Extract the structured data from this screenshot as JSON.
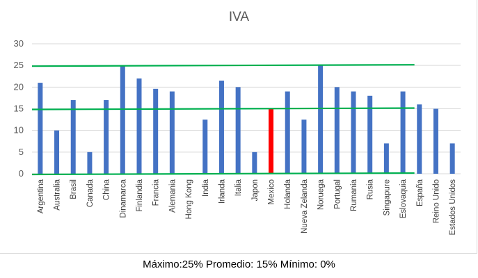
{
  "caption": "Máximo:25% Promedio: 15% Mínimo: 0%",
  "colors": {
    "bar": "#4472c4",
    "highlight": "#ff0000",
    "reference_line": "#00b050",
    "grid": "#d9d9d9"
  },
  "chart_data": {
    "type": "bar",
    "title": "IVA",
    "xlabel": "",
    "ylabel": "",
    "ylim": [
      0,
      30
    ],
    "yticks": [
      0,
      5,
      10,
      15,
      20,
      25,
      30
    ],
    "grid": true,
    "categories": [
      "Argentina",
      "Australia",
      "Brasil",
      "Canada",
      "China",
      "Dinamarca",
      "Finlandia",
      "Francia",
      "Alemania",
      "Hong Kong",
      "India",
      "Irlanda",
      "Italia",
      "Japon",
      "Mexico",
      "Holanda",
      "Nueva Zelanda",
      "Noruega",
      "Portugal",
      "Rumania",
      "Rusia",
      "Singapure",
      "Eslovaquia",
      "España",
      "Reino Unido",
      "Estados Unidos"
    ],
    "values": [
      21,
      10,
      17,
      5,
      17,
      25,
      22,
      19.6,
      19,
      0,
      12.5,
      21.5,
      20,
      5,
      15,
      19,
      12.5,
      25,
      20,
      19,
      18,
      7,
      19,
      16,
      15,
      7
    ],
    "highlight_category": "Mexico",
    "reference_lines": [
      {
        "label": "Máximo",
        "value": 25
      },
      {
        "label": "Promedio",
        "value": 15
      },
      {
        "label": "Mínimo",
        "value": 0
      }
    ]
  }
}
